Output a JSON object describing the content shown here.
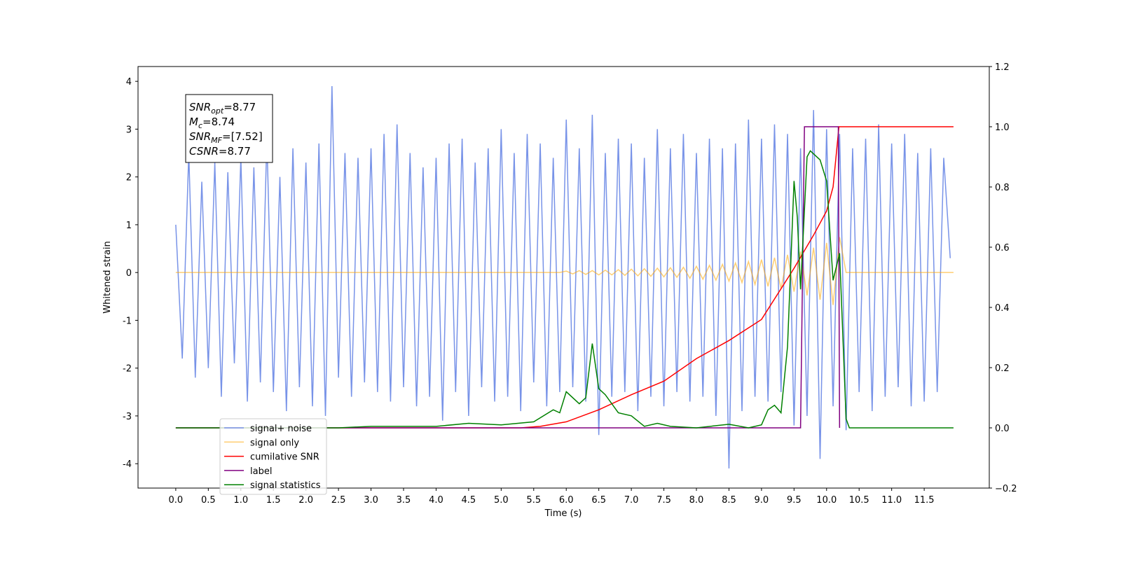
{
  "chart_data": {
    "type": "line",
    "xlabel": "Time (s)",
    "ylabel": "Whitened strain",
    "xlim": [
      -0.58,
      12.5
    ],
    "ylim": [
      -4.51,
      4.31
    ],
    "y2lim": [
      -0.2,
      1.2
    ],
    "xticks": [
      {
        "value": 0,
        "label": "0.0"
      },
      0.5,
      {
        "value": 1,
        "label": "1.0"
      },
      1.5,
      {
        "value": 2,
        "label": "2.0"
      },
      2.5,
      {
        "value": 3,
        "label": "3.0"
      },
      3.5,
      {
        "value": 4,
        "label": "4.0"
      },
      4.5,
      {
        "value": 5,
        "label": "5.0"
      },
      5.5,
      {
        "value": 6,
        "label": "6.0"
      },
      6.5,
      {
        "value": 7,
        "label": "7.0"
      },
      7.5,
      {
        "value": 8,
        "label": "8.0"
      },
      8.5,
      {
        "value": 9,
        "label": "9.0"
      },
      9.5,
      {
        "value": 10,
        "label": "10.0"
      },
      10.5,
      {
        "value": 11,
        "label": "11.0"
      },
      11.5
    ],
    "yticks": [
      -4,
      -3,
      -2,
      -1,
      0,
      1,
      2,
      3,
      4
    ],
    "y2ticks": [
      {
        "value": -0.2,
        "label": "−0.2"
      },
      {
        "value": 0,
        "label": "0.0"
      },
      0.2,
      0.4,
      0.6,
      0.8,
      {
        "value": 1,
        "label": "1.0"
      },
      1.2
    ],
    "legend": "lower left",
    "annotations": [
      {
        "name": "SNR",
        "sub": "opt",
        "text": "=8.77"
      },
      {
        "name": "M",
        "sub": "c",
        "text": "=8.74"
      },
      {
        "name": "SNR",
        "sub": "MF",
        "text": "=[7.52]"
      },
      {
        "name": "CSNR",
        "sub": "",
        "text": "=8.77"
      }
    ],
    "series": [
      {
        "name": "signal+ noise",
        "color": "#7893e8",
        "x": [
          0,
          0.1,
          0.2,
          0.3,
          0.4,
          0.5,
          0.6,
          0.7,
          0.8,
          0.9,
          1,
          1.1,
          1.2,
          1.3,
          1.4,
          1.5,
          1.6,
          1.7,
          1.8,
          1.9,
          2,
          2.1,
          2.2,
          2.3,
          2.4,
          2.5,
          2.6,
          2.7,
          2.8,
          2.9,
          3,
          3.1,
          3.2,
          3.3,
          3.4,
          3.5,
          3.6,
          3.7,
          3.8,
          3.9,
          4,
          4.1,
          4.2,
          4.3,
          4.4,
          4.5,
          4.6,
          4.7,
          4.8,
          4.9,
          5,
          5.1,
          5.2,
          5.3,
          5.4,
          5.5,
          5.6,
          5.7,
          5.8,
          5.9,
          6,
          6.1,
          6.2,
          6.3,
          6.4,
          6.5,
          6.6,
          6.7,
          6.8,
          6.9,
          7,
          7.1,
          7.2,
          7.3,
          7.4,
          7.5,
          7.6,
          7.7,
          7.8,
          7.9,
          8,
          8.1,
          8.2,
          8.3,
          8.4,
          8.5,
          8.6,
          8.7,
          8.8,
          8.9,
          9,
          9.1,
          9.2,
          9.3,
          9.4,
          9.5,
          9.6,
          9.7,
          9.8,
          9.9,
          10,
          10.1,
          10.2,
          10.3,
          10.4,
          10.5,
          10.6,
          10.7,
          10.8,
          10.9,
          11,
          11.1,
          11.2,
          11.3,
          11.4,
          11.5,
          11.6,
          11.7,
          11.8,
          11.9
        ],
        "values": [
          1.0,
          -1.8,
          2.5,
          -2.2,
          1.9,
          -2.0,
          2.3,
          -2.6,
          2.1,
          -1.9,
          2.4,
          -2.7,
          2.2,
          -2.3,
          2.8,
          -2.5,
          2.0,
          -2.9,
          2.6,
          -2.4,
          2.3,
          -2.8,
          2.7,
          -3.0,
          3.9,
          -2.2,
          2.5,
          -2.6,
          2.4,
          -2.3,
          2.6,
          -2.5,
          2.9,
          -2.7,
          3.1,
          -2.4,
          2.5,
          -2.8,
          2.2,
          -2.6,
          2.4,
          -3.1,
          2.7,
          -2.5,
          2.8,
          -3.0,
          2.3,
          -2.4,
          2.6,
          -2.7,
          3.0,
          -2.6,
          2.5,
          -2.9,
          2.9,
          -2.3,
          2.7,
          -2.8,
          2.4,
          -2.5,
          3.2,
          -2.4,
          2.6,
          -2.7,
          3.3,
          -3.4,
          2.5,
          -2.6,
          2.8,
          -2.5,
          2.7,
          -2.9,
          2.4,
          -2.6,
          3.0,
          -2.8,
          2.6,
          -2.5,
          2.9,
          -2.7,
          2.5,
          -2.6,
          2.8,
          -3.0,
          2.6,
          -4.1,
          2.7,
          -2.9,
          3.2,
          -2.6,
          2.8,
          -2.7,
          3.1,
          -2.5,
          2.9,
          -3.2,
          2.6,
          -3.0,
          3.4,
          -3.9,
          3.0,
          -2.8,
          2.9,
          -3.3,
          2.6,
          -2.5,
          2.8,
          -2.9,
          3.1,
          -2.6,
          2.7,
          -2.4,
          2.9,
          -2.8,
          2.5,
          -2.7,
          2.6,
          -2.5,
          2.4,
          0.3
        ]
      },
      {
        "name": "signal only",
        "color": "#ffa500",
        "x": [
          0,
          5.9,
          6.0,
          6.1,
          6.2,
          6.3,
          6.4,
          6.5,
          6.6,
          6.7,
          6.8,
          6.9,
          7.0,
          7.1,
          7.2,
          7.3,
          7.4,
          7.5,
          7.6,
          7.7,
          7.8,
          7.9,
          8.0,
          8.1,
          8.2,
          8.3,
          8.4,
          8.5,
          8.6,
          8.7,
          8.8,
          8.9,
          9.0,
          9.1,
          9.2,
          9.3,
          9.4,
          9.5,
          9.6,
          9.7,
          9.8,
          9.9,
          10.0,
          10.1,
          10.2,
          10.3,
          11.95
        ],
        "values": [
          0,
          0,
          0.03,
          -0.03,
          0.04,
          -0.04,
          0.04,
          -0.05,
          0.05,
          -0.05,
          0.06,
          -0.06,
          0.07,
          -0.07,
          0.08,
          -0.08,
          0.09,
          -0.09,
          0.1,
          -0.1,
          0.11,
          -0.12,
          0.13,
          -0.14,
          0.15,
          -0.16,
          0.17,
          -0.18,
          0.2,
          -0.21,
          0.23,
          -0.25,
          0.27,
          -0.29,
          0.31,
          -0.34,
          0.37,
          -0.4,
          0.44,
          -0.48,
          0.52,
          -0.57,
          0.62,
          -0.68,
          0.74,
          0,
          0
        ]
      },
      {
        "name": "cumilative SNR",
        "color": "#ff0000",
        "axis": "y2",
        "x": [
          0,
          5.3,
          5.6,
          6.0,
          6.5,
          7.0,
          7.5,
          8.0,
          8.5,
          9.0,
          9.5,
          9.8,
          10.0,
          10.1,
          10.19,
          11.95
        ],
        "values": [
          0,
          0,
          0.005,
          0.02,
          0.06,
          0.11,
          0.155,
          0.23,
          0.29,
          0.36,
          0.53,
          0.64,
          0.72,
          0.8,
          1.0,
          1.0
        ]
      },
      {
        "name": "label",
        "color": "#800080",
        "axis": "y2",
        "x": [
          0,
          9.6,
          9.66,
          10.18,
          10.2
        ],
        "values": [
          0,
          0,
          1.0,
          1.0,
          0
        ]
      },
      {
        "name": "signal statistics",
        "color": "#008000",
        "axis": "y2",
        "x": [
          0,
          2.5,
          3.0,
          4.0,
          4.5,
          5.0,
          5.5,
          5.8,
          5.9,
          6.0,
          6.2,
          6.3,
          6.4,
          6.5,
          6.6,
          6.8,
          7.0,
          7.2,
          7.4,
          7.6,
          8.0,
          8.5,
          8.8,
          9.0,
          9.1,
          9.2,
          9.3,
          9.4,
          9.5,
          9.55,
          9.6,
          9.7,
          9.75,
          9.9,
          10.0,
          10.1,
          10.2,
          10.3,
          10.35,
          11.95
        ],
        "values": [
          0,
          0,
          0.005,
          0.005,
          0.015,
          0.01,
          0.02,
          0.06,
          0.05,
          0.12,
          0.08,
          0.1,
          0.28,
          0.13,
          0.11,
          0.05,
          0.04,
          0.005,
          0.015,
          0.005,
          0,
          0.012,
          0,
          0.01,
          0.06,
          0.075,
          0.05,
          0.27,
          0.82,
          0.7,
          0.46,
          0.9,
          0.92,
          0.89,
          0.82,
          0.49,
          0.58,
          0.03,
          0,
          0
        ]
      }
    ]
  }
}
